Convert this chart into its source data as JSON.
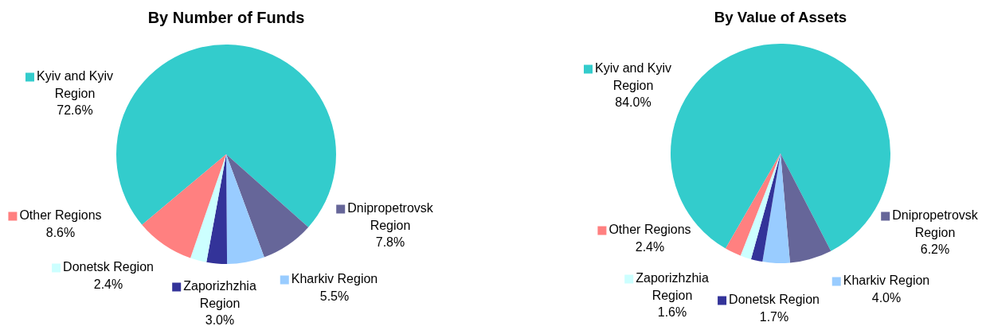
{
  "chart_data": [
    {
      "type": "pie",
      "title": "By Number of Funds",
      "categories": [
        "Kyiv and Kyiv Region",
        "Dnipropetrovsk Region",
        "Kharkiv Region",
        "Zaporizhzhia Region",
        "Donetsk Region",
        "Other Regions"
      ],
      "values": [
        72.6,
        7.8,
        5.5,
        3.0,
        2.4,
        8.6
      ],
      "colors": [
        "#33cccc",
        "#666699",
        "#99ccff",
        "#333399",
        "#ccffff",
        "#ff8080"
      ],
      "value_labels": [
        "72.6%",
        "7.8%",
        "5.5%",
        "3.0%",
        "2.4%",
        "8.6%"
      ],
      "legend": "left"
    },
    {
      "type": "pie",
      "title": "By Value of Assets",
      "categories": [
        "Kyiv and Kyiv Region",
        "Dnipropetrovsk Region",
        "Kharkiv Region",
        "Donetsk Region",
        "Zaporizhzhia Region",
        "Other Regions"
      ],
      "values": [
        84.0,
        6.2,
        4.0,
        1.7,
        1.6,
        2.4
      ],
      "colors": [
        "#33cccc",
        "#666699",
        "#99ccff",
        "#333399",
        "#ccffff",
        "#ff8080"
      ],
      "value_labels": [
        "84.0%",
        "6.2%",
        "4.0%",
        "1.7%",
        "1.6%",
        "2.4%"
      ],
      "legend": "left"
    }
  ]
}
